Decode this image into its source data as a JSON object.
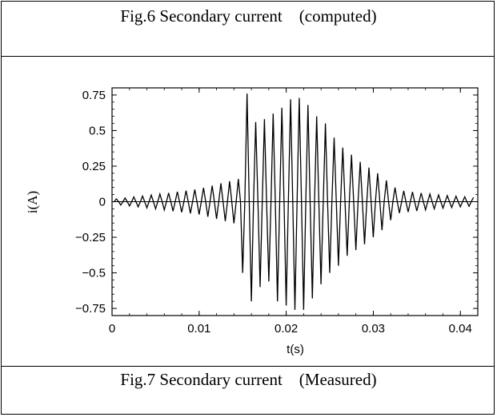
{
  "captions": {
    "top": "Fig.6 Secondary current    (computed)",
    "bottom": "Fig.7 Secondary current    (Measured)"
  },
  "chart_data": {
    "type": "line",
    "title": "",
    "xlabel": "t(s)",
    "ylabel": "i(A)",
    "xlim": [
      0,
      0.042
    ],
    "ylim": [
      -0.8,
      0.8
    ],
    "x_ticks": [
      0,
      0.01,
      0.02,
      0.03,
      0.04
    ],
    "x_tick_labels": [
      "0",
      "0.01",
      "0.02",
      "0.03",
      "0.04"
    ],
    "y_ticks": [
      0.75,
      0.5,
      0.25,
      0,
      -0.25,
      -0.5,
      -0.75
    ],
    "y_tick_labels": [
      "0.75",
      "0.5",
      "0.25",
      "0",
      "−0.25",
      "−0.5",
      "−0.75"
    ],
    "grid": false,
    "legend": "none",
    "line_color": "#000000",
    "series": [
      {
        "peaks": [
          {
            "t": 0.015,
            "i": -0.5
          },
          {
            "t": 0.0155,
            "i": 0.76
          },
          {
            "t": 0.016,
            "i": -0.7
          },
          {
            "t": 0.0165,
            "i": 0.56
          },
          {
            "t": 0.017,
            "i": -0.6
          },
          {
            "t": 0.0175,
            "i": 0.58
          },
          {
            "t": 0.018,
            "i": -0.56
          },
          {
            "t": 0.0185,
            "i": 0.62
          },
          {
            "t": 0.019,
            "i": -0.7
          },
          {
            "t": 0.0195,
            "i": 0.66
          },
          {
            "t": 0.02,
            "i": -0.73
          },
          {
            "t": 0.0205,
            "i": 0.72
          },
          {
            "t": 0.021,
            "i": -0.76
          },
          {
            "t": 0.0215,
            "i": 0.73
          },
          {
            "t": 0.022,
            "i": -0.76
          },
          {
            "t": 0.0225,
            "i": 0.68
          },
          {
            "t": 0.023,
            "i": -0.68
          },
          {
            "t": 0.0235,
            "i": 0.6
          },
          {
            "t": 0.024,
            "i": -0.58
          },
          {
            "t": 0.0245,
            "i": 0.55
          },
          {
            "t": 0.025,
            "i": -0.5
          },
          {
            "t": 0.0255,
            "i": 0.45
          },
          {
            "t": 0.026,
            "i": -0.45
          },
          {
            "t": 0.0265,
            "i": 0.38
          },
          {
            "t": 0.027,
            "i": -0.38
          },
          {
            "t": 0.0275,
            "i": 0.33
          },
          {
            "t": 0.028,
            "i": -0.34
          },
          {
            "t": 0.0285,
            "i": 0.28
          },
          {
            "t": 0.029,
            "i": -0.3
          },
          {
            "t": 0.0295,
            "i": 0.24
          },
          {
            "t": 0.03,
            "i": -0.25
          },
          {
            "t": 0.0305,
            "i": 0.2
          },
          {
            "t": 0.031,
            "i": -0.2
          },
          {
            "t": 0.0315,
            "i": 0.15
          },
          {
            "t": 0.032,
            "i": -0.13
          },
          {
            "t": 0.0325,
            "i": 0.1
          }
        ],
        "small_oscillation_amplitude": [
          {
            "t": 0.0005,
            "a": 0.02
          },
          {
            "t": 0.005,
            "a": 0.05
          },
          {
            "t": 0.01,
            "a": 0.09
          },
          {
            "t": 0.0145,
            "a": 0.16
          },
          {
            "t": 0.033,
            "a": 0.08
          },
          {
            "t": 0.037,
            "a": 0.05
          },
          {
            "t": 0.0415,
            "a": 0.03
          }
        ]
      }
    ]
  }
}
